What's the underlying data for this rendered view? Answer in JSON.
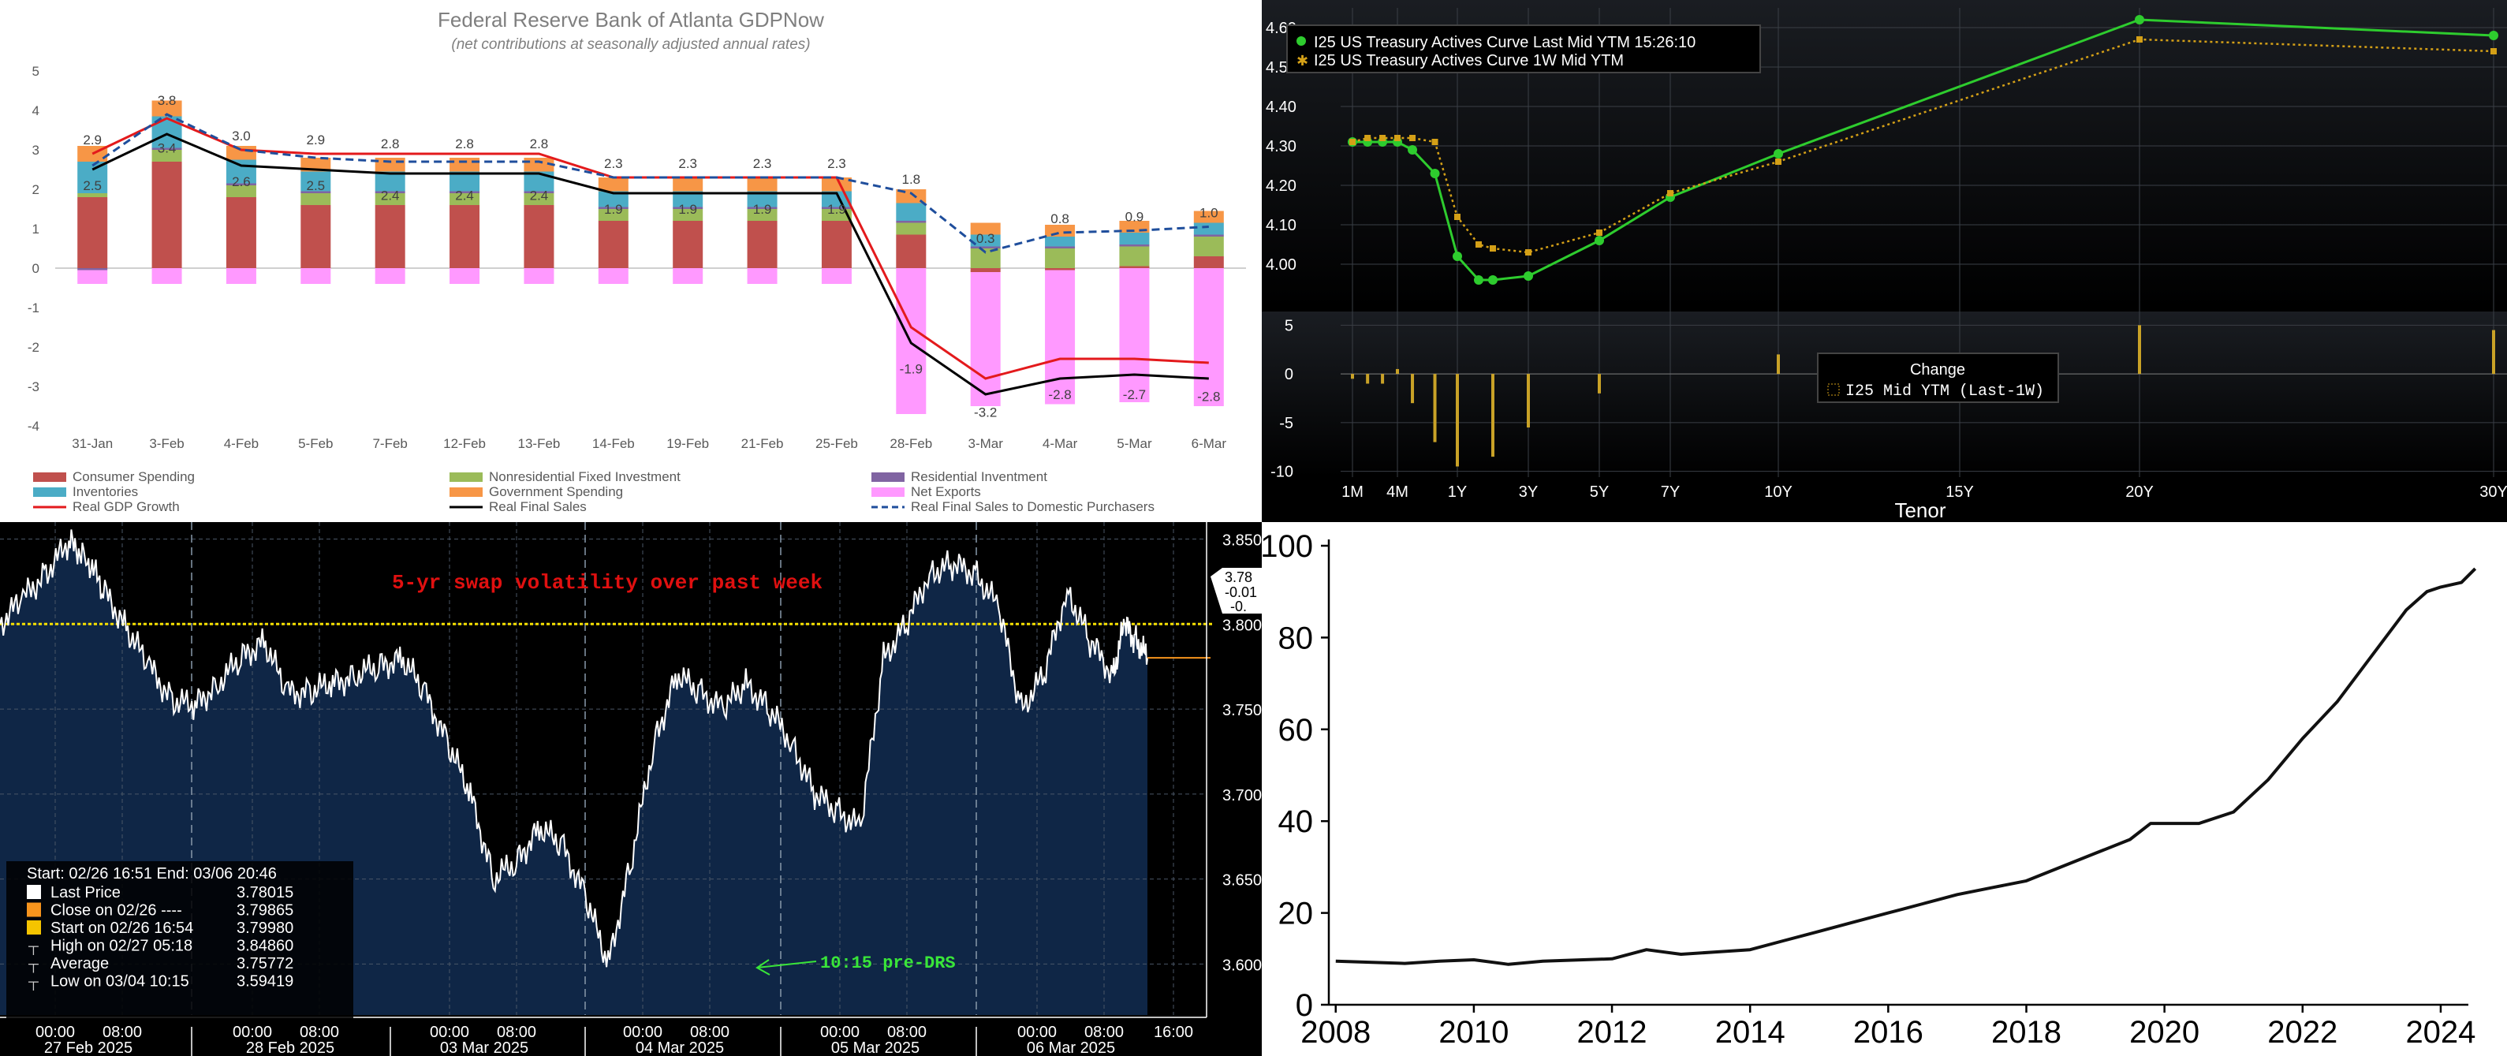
{
  "chart_data": [
    {
      "type": "bar",
      "title": "Federal Reserve Bank of Atlanta GDPNow",
      "subtitle": "(net contributions at seasonally adjusted annual rates)",
      "categories": [
        "31-Jan",
        "3-Feb",
        "4-Feb",
        "5-Feb",
        "7-Feb",
        "12-Feb",
        "13-Feb",
        "14-Feb",
        "19-Feb",
        "21-Feb",
        "25-Feb",
        "28-Feb",
        "3-Mar",
        "4-Mar",
        "5-Mar",
        "6-Mar"
      ],
      "ylim": [
        -4,
        5
      ],
      "yticks": [
        -4,
        -3,
        -2,
        -1,
        0,
        1,
        2,
        3,
        4,
        5
      ],
      "grid": false,
      "legend_position": "bottom",
      "bar_series": [
        {
          "name": "Consumer Spending",
          "color": "#c0504d",
          "values": [
            1.8,
            2.7,
            1.8,
            1.6,
            1.6,
            1.6,
            1.6,
            1.2,
            1.2,
            1.2,
            1.2,
            0.85,
            -0.1,
            -0.05,
            0.05,
            0.3
          ]
        },
        {
          "name": "Nonresidential Fixed Investment",
          "color": "#9bbb59",
          "values": [
            0.1,
            0.3,
            0.3,
            0.3,
            0.3,
            0.3,
            0.3,
            0.3,
            0.3,
            0.3,
            0.3,
            0.3,
            0.5,
            0.5,
            0.5,
            0.5
          ]
        },
        {
          "name": "Residential Inventment",
          "color": "#8064a2",
          "values": [
            -0.05,
            0.05,
            0.05,
            0.05,
            0.05,
            0.05,
            0.05,
            0.05,
            0.05,
            0.05,
            0.05,
            0.05,
            0.05,
            0.05,
            0.05,
            0.05
          ]
        },
        {
          "name": "Inventories",
          "color": "#4bacc6",
          "values": [
            0.8,
            0.8,
            0.6,
            0.5,
            0.5,
            0.5,
            0.5,
            0.4,
            0.4,
            0.4,
            0.4,
            0.45,
            0.3,
            0.25,
            0.3,
            0.3
          ]
        },
        {
          "name": "Government Spending",
          "color": "#f79646",
          "values": [
            0.4,
            0.4,
            0.35,
            0.35,
            0.35,
            0.35,
            0.35,
            0.35,
            0.35,
            0.35,
            0.35,
            0.35,
            0.3,
            0.3,
            0.3,
            0.3
          ]
        },
        {
          "name": "Net Exports",
          "color": "#ff99ff",
          "values": [
            -0.35,
            -0.4,
            -0.4,
            -0.4,
            -0.4,
            -0.4,
            -0.4,
            -0.4,
            -0.4,
            -0.4,
            -0.4,
            -3.7,
            -3.4,
            -3.4,
            -3.4,
            -3.5
          ]
        }
      ],
      "line_series": [
        {
          "name": "Real GDP Growth",
          "color": "#e31a1c",
          "style": "solid",
          "values": [
            2.9,
            3.8,
            3.0,
            2.9,
            2.9,
            2.9,
            2.9,
            2.3,
            2.3,
            2.3,
            2.3,
            -1.5,
            -2.8,
            -2.3,
            -2.3,
            -2.4
          ]
        },
        {
          "name": "Real Final Sales",
          "color": "#000000",
          "style": "solid",
          "values": [
            2.5,
            3.4,
            2.6,
            2.5,
            2.4,
            2.4,
            2.4,
            1.9,
            1.9,
            1.9,
            1.9,
            -1.9,
            -3.2,
            -2.8,
            -2.7,
            -2.8
          ]
        },
        {
          "name": "Real Final Sales to  Domestic Purchasers",
          "color": "#1f4e9c",
          "style": "dashed",
          "values": [
            2.6,
            3.9,
            3.0,
            2.8,
            2.7,
            2.7,
            2.7,
            2.3,
            2.3,
            2.3,
            2.3,
            1.9,
            0.4,
            0.9,
            0.95,
            1.05
          ]
        }
      ],
      "top_labels": [
        "2.9",
        "3.8",
        "3.0",
        "2.9",
        "2.8",
        "2.8",
        "2.8",
        "2.3",
        "2.3",
        "2.3",
        "2.3",
        "1.8",
        "0.3",
        "0.8",
        "0.9",
        "1.0"
      ],
      "mid_labels": [
        "2.5",
        "3.4",
        "2.6",
        "2.5",
        "2.4",
        "2.4",
        "2.4",
        "1.9",
        "1.9",
        "1.9",
        "1.9",
        "-1.9",
        "-3.2",
        "-2.8",
        "-2.7",
        "-2.8"
      ],
      "mid_label_y": [
        2.1,
        3.05,
        2.2,
        2.1,
        1.85,
        1.85,
        1.85,
        1.5,
        1.5,
        1.5,
        1.5,
        -2.55,
        -3.65,
        -3.2,
        -3.2,
        -3.25
      ]
    },
    {
      "type": "line",
      "xlabel": "Tenor",
      "x_ticks": [
        "1M",
        "4M",
        "1Y",
        "3Y",
        "5Y",
        "7Y",
        "10Y",
        "15Y",
        "20Y",
        "30Y"
      ],
      "x_tick_years": [
        0.083,
        0.333,
        1,
        3,
        5,
        7,
        10,
        15,
        20,
        30
      ],
      "ylim": [
        3.9,
        4.65
      ],
      "y_ticks": [
        "4.60",
        "4.50",
        "4.40",
        "4.30",
        "4.20",
        "4.10",
        "4.00"
      ],
      "series": [
        {
          "name": "I25 US Treasury Actives Curve Last Mid YTM 15:26:10",
          "color": "#2ecc2e",
          "style": "solid",
          "x": [
            0.083,
            0.167,
            0.25,
            0.333,
            0.5,
            0.75,
            1,
            1.6,
            2,
            3,
            5,
            7,
            10,
            20,
            30
          ],
          "y": [
            4.31,
            4.31,
            4.31,
            4.31,
            4.29,
            4.23,
            4.02,
            3.96,
            3.96,
            3.97,
            4.06,
            4.17,
            4.28,
            4.62,
            4.58
          ]
        },
        {
          "name": "I25 US Treasury Actives Curve 1W Mid YTM",
          "color": "#d4a017",
          "style": "dotted",
          "x": [
            0.083,
            0.167,
            0.25,
            0.333,
            0.5,
            0.75,
            1,
            1.6,
            2,
            3,
            5,
            7,
            10,
            20,
            30
          ],
          "y": [
            4.31,
            4.32,
            4.32,
            4.32,
            4.32,
            4.31,
            4.12,
            4.05,
            4.04,
            4.03,
            4.08,
            4.18,
            4.26,
            4.57,
            4.54
          ]
        }
      ],
      "change_panel": {
        "legend_title": "Change",
        "legend_entry": "I25 Mid YTM (Last-1W)",
        "ylim": [
          -11,
          6
        ],
        "y_ticks": [
          "5",
          "0",
          "-5",
          "-10"
        ],
        "bar_x": [
          0.083,
          0.167,
          0.25,
          0.333,
          0.5,
          0.75,
          1,
          2,
          3,
          5,
          10,
          20,
          30
        ],
        "bar_values": [
          -0.5,
          -1,
          -1,
          0.5,
          -3,
          -7,
          -9.5,
          -8.5,
          -5.5,
          -2,
          2,
          5,
          4.5
        ]
      }
    },
    {
      "type": "line",
      "title": "5-yr swap volatility over past week",
      "annotation": "10:15 pre-DRS",
      "reference_line": 3.8,
      "ylim": [
        3.57,
        3.86
      ],
      "y_ticks": [
        "3.850",
        "3.800",
        "3.750",
        "3.700",
        "3.650",
        "3.600"
      ],
      "x_time_labels": [
        "00:00",
        "08:00",
        "00:00",
        "08:00",
        "00:00",
        "08:00",
        "00:00",
        "08:00",
        "00:00",
        "08:00",
        "00:00",
        "08:00",
        "16:00"
      ],
      "x_date_labels": [
        "27 Feb 2025",
        "28 Feb 2025",
        "03 Mar 2025",
        "04 Mar 2025",
        "05 Mar 2025",
        "06 Mar 2025"
      ],
      "right_badge": [
        "3.78",
        "-0.01",
        "-0."
      ],
      "series": [
        {
          "name": "Last Price",
          "color": "#ffffff",
          "t": [
            0,
            0.02,
            0.04,
            0.06,
            0.075,
            0.09,
            0.11,
            0.13,
            0.15,
            0.17,
            0.19,
            0.21,
            0.23,
            0.25,
            0.27,
            0.29,
            0.31,
            0.33,
            0.35,
            0.37,
            0.39,
            0.41,
            0.43,
            0.45,
            0.47,
            0.49,
            0.51,
            0.53,
            0.55,
            0.57,
            0.59,
            0.61,
            0.63,
            0.65,
            0.67,
            0.69,
            0.71,
            0.73,
            0.75,
            0.77,
            0.79,
            0.81,
            0.83,
            0.85,
            0.87,
            0.89,
            0.91,
            0.93,
            0.95,
            0.97,
            0.98,
            0.99,
            1.0
          ],
          "y": [
            3.8,
            3.815,
            3.83,
            3.848,
            3.84,
            3.82,
            3.798,
            3.775,
            3.755,
            3.752,
            3.765,
            3.78,
            3.79,
            3.76,
            3.76,
            3.765,
            3.77,
            3.775,
            3.78,
            3.76,
            3.73,
            3.7,
            3.65,
            3.66,
            3.68,
            3.67,
            3.64,
            3.6,
            3.66,
            3.73,
            3.77,
            3.76,
            3.75,
            3.765,
            3.75,
            3.73,
            3.7,
            3.69,
            3.68,
            3.78,
            3.8,
            3.83,
            3.835,
            3.83,
            3.81,
            3.75,
            3.77,
            3.82,
            3.79,
            3.77,
            3.8,
            3.79,
            3.78
          ]
        }
      ],
      "info_box": {
        "header": "Start: 02/26 16:51 End: 03/06 20:46",
        "rows": [
          {
            "label": "Last Price",
            "value": "3.78015",
            "swatch": "#ffffff"
          },
          {
            "label": "Close on 02/26 ----",
            "value": "3.79865",
            "swatch": "#f7941d"
          },
          {
            "label": "Start on 02/26 16:54",
            "value": "3.79980",
            "swatch": "#f5c400"
          },
          {
            "label": "High on 02/27 05:18",
            "value": "3.84860",
            "swatch": ""
          },
          {
            "label": "Average",
            "value": "3.75772",
            "swatch": ""
          },
          {
            "label": "Low on 03/04 10:15",
            "value": "3.59419",
            "swatch": ""
          }
        ]
      }
    },
    {
      "type": "line",
      "x": [
        2008,
        2009,
        2009.5,
        2010,
        2010.5,
        2011,
        2012,
        2012.5,
        2013,
        2013.5,
        2014,
        2014.5,
        2015,
        2015.5,
        2016,
        2016.5,
        2017,
        2017.5,
        2018,
        2018.5,
        2019,
        2019.5,
        2019.8,
        2020.5,
        2021,
        2021.5,
        2022,
        2022.5,
        2023,
        2023.5,
        2023.8,
        2024,
        2024.3,
        2024.5
      ],
      "y": [
        9.5,
        9,
        9.5,
        9.8,
        8.8,
        9.5,
        10,
        12,
        11,
        11.5,
        12,
        14,
        16,
        18,
        20,
        22,
        24,
        25.5,
        27,
        30,
        33,
        36,
        39.5,
        39.5,
        42,
        49,
        58,
        66,
        76,
        86,
        90,
        91,
        92,
        95
      ],
      "xlim": [
        2007.9,
        2024.8
      ],
      "ylim": [
        0,
        100
      ],
      "x_ticks": [
        "2008",
        "2010",
        "2012",
        "2014",
        "2016",
        "2018",
        "2020",
        "2022",
        "2024"
      ],
      "y_ticks": [
        "0",
        "20",
        "40",
        "60",
        "80",
        "100"
      ],
      "grid": false
    }
  ]
}
